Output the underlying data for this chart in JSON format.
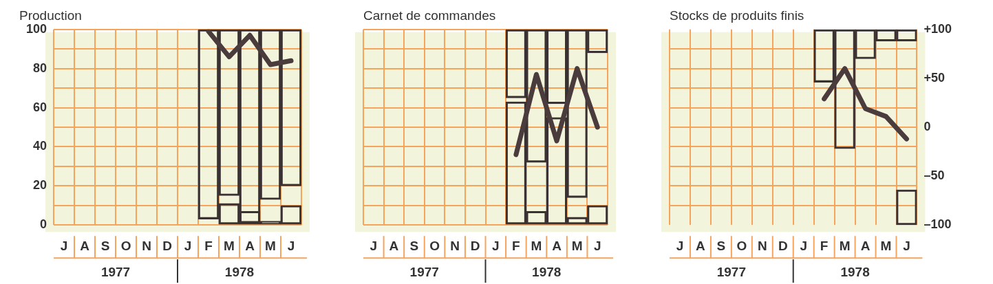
{
  "chart_data": [
    {
      "type": "bar",
      "title": "Production",
      "categories": [
        "J",
        "A",
        "S",
        "O",
        "N",
        "D",
        "J",
        "F",
        "M",
        "A",
        "M",
        "J"
      ],
      "series": [
        {
          "color": "#3a3232",
          "values": [
            null,
            null,
            null,
            null,
            null,
            null,
            null,
            null,
            11,
            7,
            2,
            10
          ]
        },
        {
          "color": "#3a3232",
          "base": [
            null,
            null,
            null,
            null,
            null,
            null,
            null,
            3,
            15,
            1,
            13,
            20
          ],
          "values": [
            null,
            null,
            null,
            null,
            null,
            null,
            null,
            97,
            85,
            99,
            87,
            80
          ]
        },
        {
          "type": "line",
          "color": "#4a3c3c",
          "values": [
            null,
            null,
            null,
            null,
            null,
            null,
            null,
            99,
            86,
            97,
            82,
            84
          ]
        }
      ],
      "ylim": [
        0,
        100
      ],
      "yticks": [
        0,
        {
          "value": 10,
          "label": null
        },
        20,
        {
          "value": 30,
          "label": null
        },
        40,
        {
          "value": 50,
          "label": null
        },
        60,
        {
          "value": 70,
          "label": null
        },
        80,
        {
          "value": 90,
          "label": null
        },
        100
      ],
      "grid": true,
      "annotations": [
        "1977",
        "1978"
      ]
    },
    {
      "type": "bar",
      "title": "Carnet de commandes",
      "categories": [
        "J",
        "A",
        "S",
        "O",
        "N",
        "D",
        "J",
        "F",
        "M",
        "A",
        "M",
        "J"
      ],
      "series": [
        {
          "color": "#3a3232",
          "values": [
            null,
            null,
            null,
            null,
            null,
            null,
            null,
            63,
            7,
            55,
            4,
            10
          ]
        },
        {
          "color": "#3a3232",
          "base": [
            null,
            null,
            null,
            null,
            null,
            null,
            null,
            65,
            32,
            62,
            14,
            88
          ],
          "values": [
            null,
            null,
            null,
            null,
            null,
            null,
            null,
            35,
            68,
            38,
            86,
            12
          ]
        },
        {
          "type": "line",
          "color": "#4a3c3c",
          "values": [
            null,
            null,
            null,
            null,
            null,
            null,
            null,
            36,
            77,
            43,
            80,
            50
          ]
        }
      ],
      "ylim": [
        0,
        100
      ],
      "yticks": [
        0,
        {
          "value": 10,
          "label": null
        },
        20,
        {
          "value": 30,
          "label": null
        },
        40,
        {
          "value": 50,
          "label": null
        },
        60,
        {
          "value": 70,
          "label": null
        },
        80,
        {
          "value": 90,
          "label": null
        },
        100
      ],
      "grid": true,
      "tick_labels": "x",
      "annotations": [
        "1977",
        "1978"
      ]
    },
    {
      "type": "bar",
      "title": "Stocks de produits finis",
      "categories": [
        "J",
        "A",
        "S",
        "O",
        "N",
        "D",
        "J",
        "F",
        "M",
        "A",
        "M",
        "J"
      ],
      "series": [
        {
          "axis": "y2",
          "color": "#3a3232",
          "base": [
            null,
            null,
            null,
            null,
            null,
            null,
            null,
            null,
            null,
            null,
            null,
            -100
          ],
          "values": [
            null,
            null,
            null,
            null,
            null,
            null,
            null,
            null,
            null,
            null,
            null,
            36
          ]
        },
        {
          "axis": "y2",
          "color": "#3a3232",
          "base": [
            null,
            null,
            null,
            null,
            null,
            null,
            null,
            46,
            -22,
            70,
            88,
            88
          ],
          "values": [
            null,
            null,
            null,
            null,
            null,
            null,
            null,
            54,
            122,
            30,
            12,
            12
          ]
        },
        {
          "type": "line",
          "axis": "y2",
          "color": "#4a3c3c",
          "values": [
            null,
            null,
            null,
            null,
            null,
            null,
            null,
            29,
            60,
            19,
            11,
            -12
          ]
        }
      ],
      "y2lim": [
        -100,
        100
      ],
      "y2ticks": [
        {
          "value": -100,
          "label": "–100"
        },
        {
          "value": -80,
          "label": null
        },
        {
          "value": -60,
          "label": null
        },
        {
          "value": -50,
          "label": "–50"
        },
        {
          "value": -40,
          "label": null
        },
        {
          "value": -20,
          "label": null
        },
        0,
        {
          "value": 20,
          "label": null
        },
        {
          "value": 40,
          "label": null
        },
        {
          "value": 50,
          "label": "+50"
        },
        {
          "value": 60,
          "label": null
        },
        {
          "value": 80,
          "label": null
        },
        {
          "value": 100,
          "label": "+100"
        }
      ],
      "grid": true,
      "annotations": [
        "1977",
        "1978"
      ]
    }
  ]
}
